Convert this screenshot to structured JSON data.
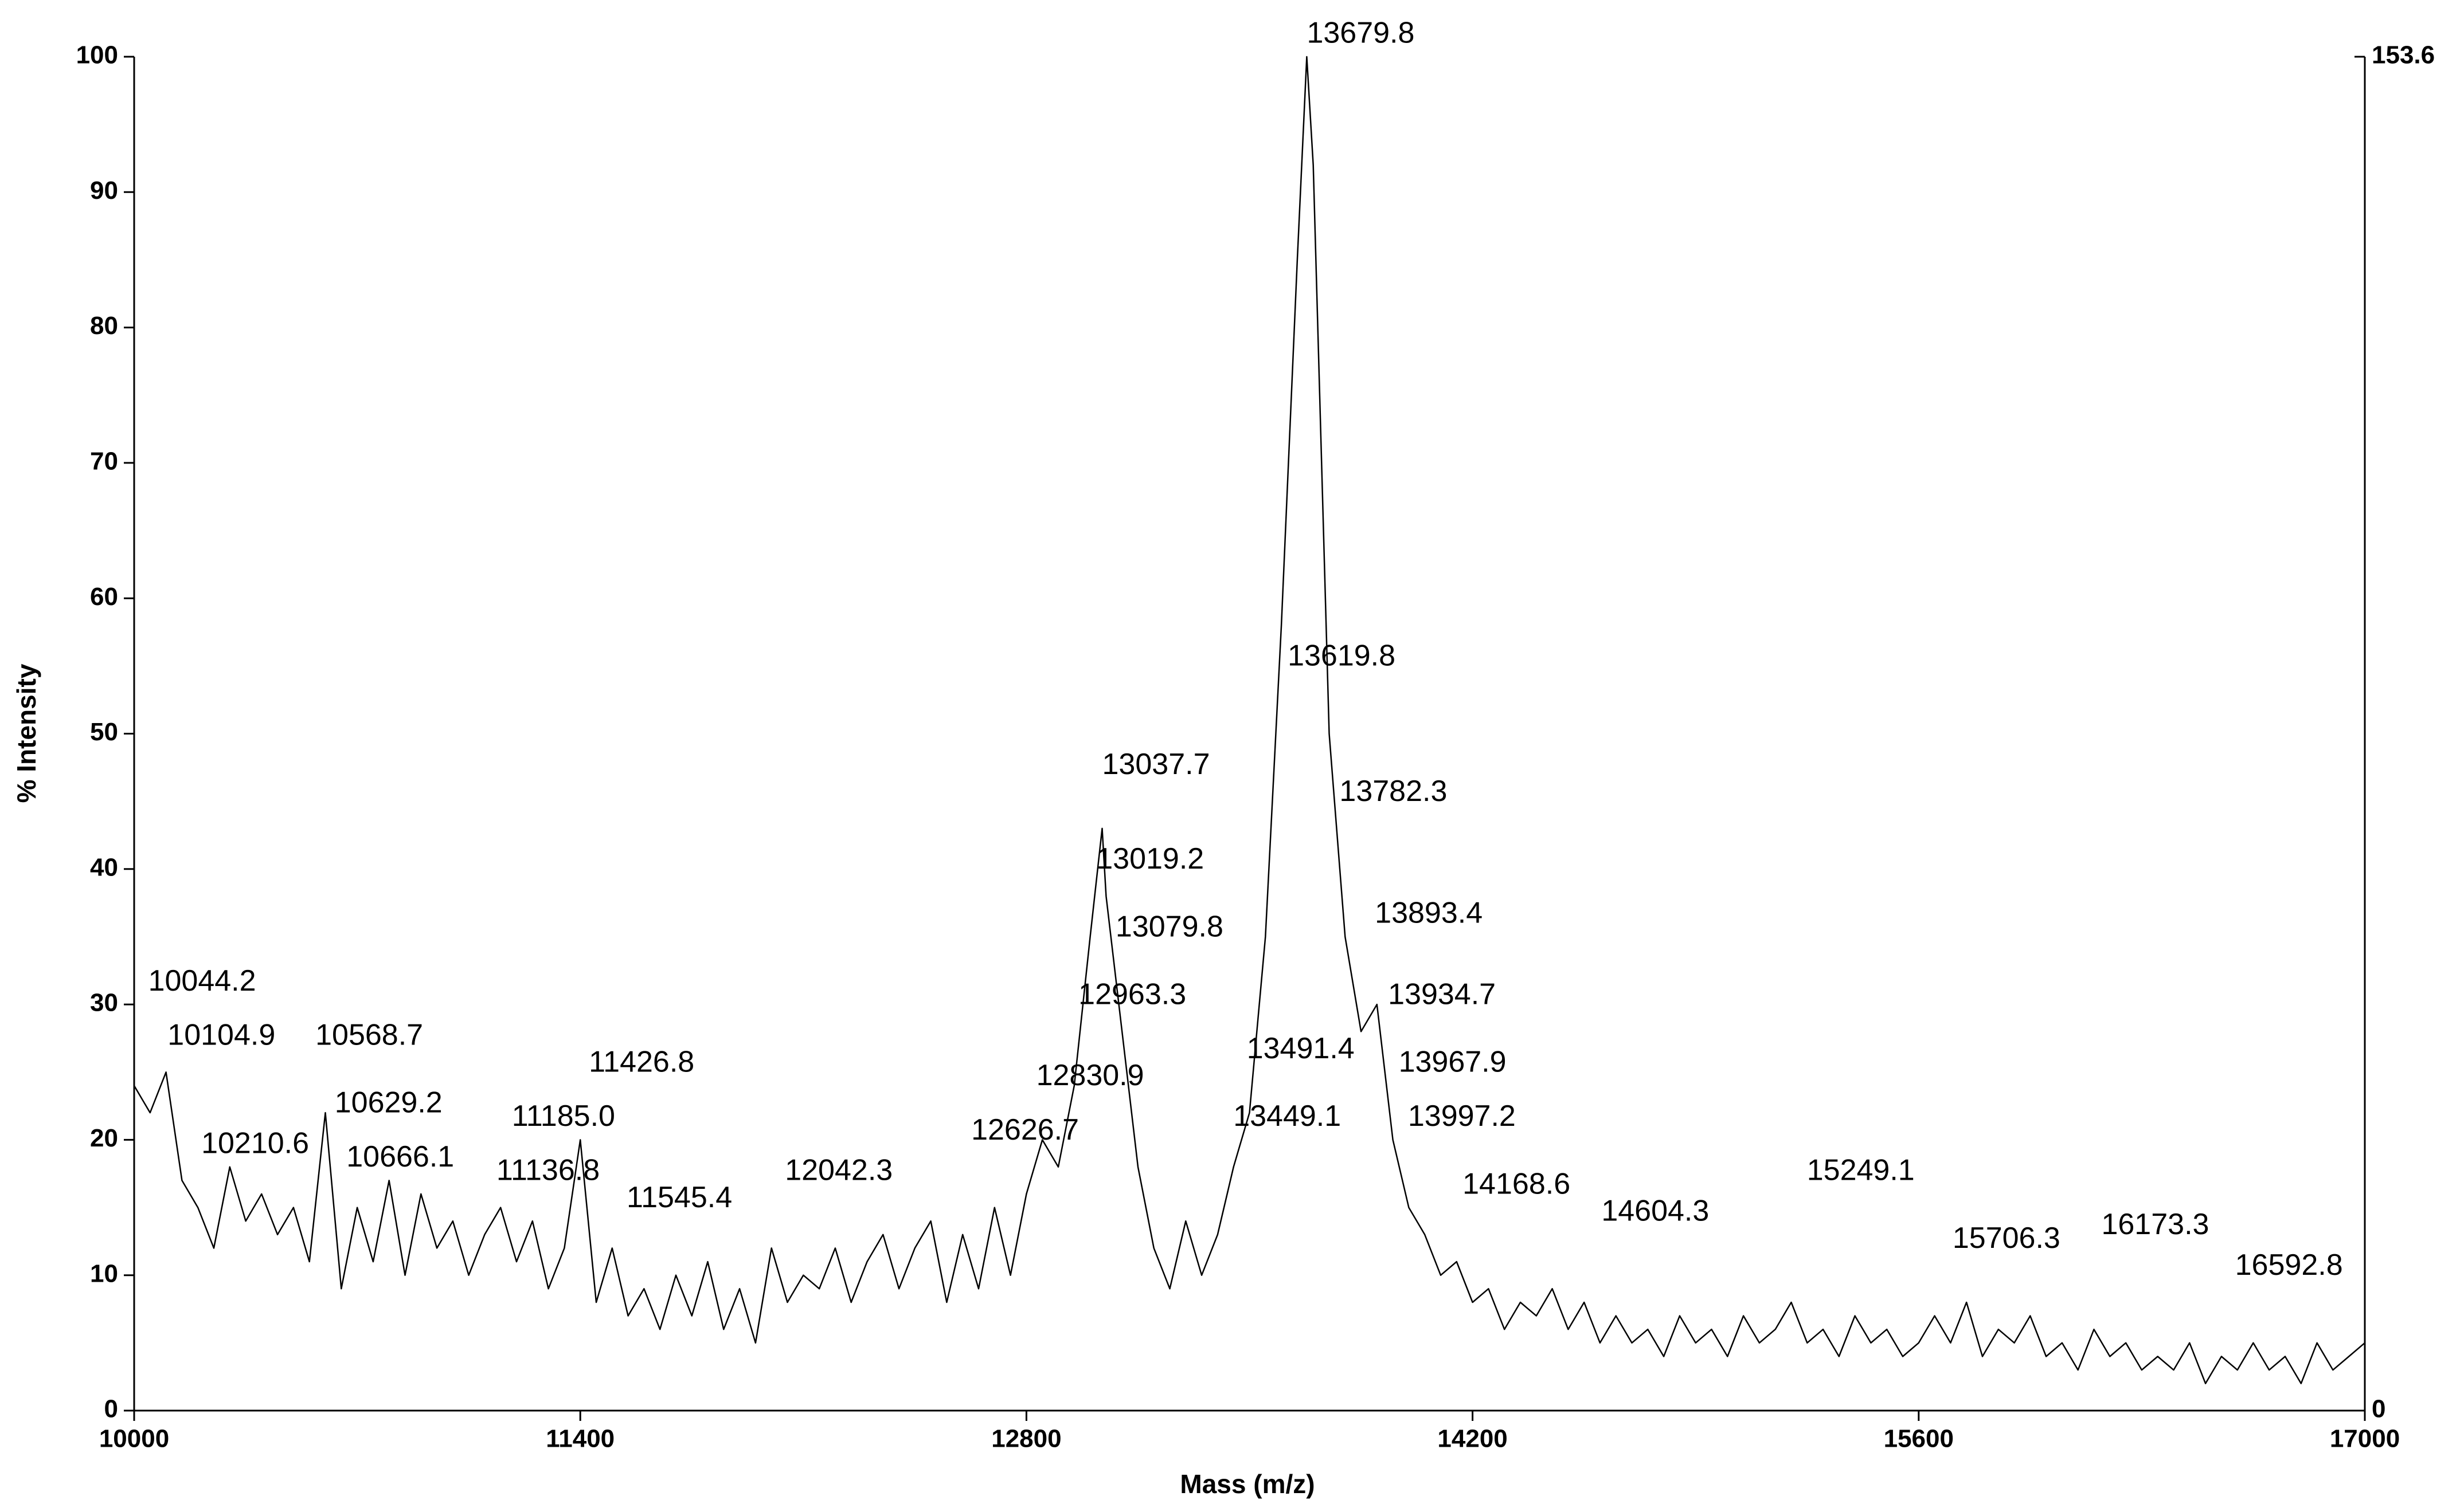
{
  "chart_data": {
    "type": "line",
    "xlabel": "Mass (m/z)",
    "ylabel": "% Intensity",
    "color": "#000000",
    "xlim": [
      10000,
      17000
    ],
    "xticks": [
      10000,
      11400,
      12800,
      14200,
      15600,
      17000
    ],
    "ylim": [
      0,
      100
    ],
    "yticks": [
      0,
      10,
      20,
      30,
      40,
      50,
      60,
      70,
      80,
      90,
      100
    ],
    "y2lim": [
      0,
      153.6
    ],
    "y2ticks": [
      0,
      153.6
    ],
    "x": [
      10000,
      10050,
      10100,
      10150,
      10200,
      10250,
      10300,
      10350,
      10400,
      10450,
      10500,
      10550,
      10600,
      10650,
      10700,
      10750,
      10800,
      10850,
      10900,
      10950,
      11000,
      11050,
      11100,
      11150,
      11200,
      11250,
      11300,
      11350,
      11400,
      11450,
      11500,
      11550,
      11600,
      11650,
      11700,
      11750,
      11800,
      11850,
      11900,
      11950,
      12000,
      12050,
      12100,
      12150,
      12200,
      12250,
      12300,
      12350,
      12400,
      12450,
      12500,
      12550,
      12600,
      12650,
      12700,
      12750,
      12800,
      12850,
      12900,
      12950,
      13000,
      13037.7,
      13050,
      13100,
      13150,
      13200,
      13250,
      13300,
      13350,
      13400,
      13450,
      13500,
      13550,
      13600,
      13650,
      13679.8,
      13700,
      13750,
      13800,
      13850,
      13900,
      13950,
      14000,
      14050,
      14100,
      14150,
      14200,
      14250,
      14300,
      14350,
      14400,
      14450,
      14500,
      14550,
      14600,
      14650,
      14700,
      14750,
      14800,
      14850,
      14900,
      14950,
      15000,
      15050,
      15100,
      15150,
      15200,
      15250,
      15300,
      15350,
      15400,
      15450,
      15500,
      15550,
      15600,
      15650,
      15700,
      15750,
      15800,
      15850,
      15900,
      15950,
      16000,
      16050,
      16100,
      16150,
      16200,
      16250,
      16300,
      16350,
      16400,
      16450,
      16500,
      16550,
      16600,
      16650,
      16700,
      16750,
      16800,
      16850,
      16900,
      16950,
      17000
    ],
    "values": [
      24,
      22,
      25,
      17,
      15,
      12,
      18,
      14,
      16,
      13,
      15,
      11,
      22,
      9,
      15,
      11,
      17,
      10,
      16,
      12,
      14,
      10,
      13,
      15,
      11,
      14,
      9,
      12,
      20,
      8,
      12,
      7,
      9,
      6,
      10,
      7,
      11,
      6,
      9,
      5,
      12,
      8,
      10,
      9,
      12,
      8,
      11,
      13,
      9,
      12,
      14,
      8,
      13,
      9,
      15,
      10,
      16,
      20,
      18,
      24,
      35,
      43,
      38,
      28,
      18,
      12,
      9,
      14,
      10,
      13,
      18,
      22,
      35,
      58,
      85,
      100,
      92,
      50,
      35,
      28,
      30,
      20,
      15,
      13,
      10,
      11,
      8,
      9,
      6,
      8,
      7,
      9,
      6,
      8,
      5,
      7,
      5,
      6,
      4,
      7,
      5,
      6,
      4,
      7,
      5,
      6,
      8,
      5,
      6,
      4,
      7,
      5,
      6,
      4,
      5,
      7,
      5,
      8,
      4,
      6,
      5,
      7,
      4,
      5,
      3,
      6,
      4,
      5,
      3,
      4,
      3,
      5,
      2,
      4,
      3,
      5,
      3,
      4,
      2,
      5,
      3,
      4,
      5
    ],
    "annotations": [
      {
        "label": "13679.8",
        "x": 13679.8,
        "y": 100
      },
      {
        "label": "13619.8",
        "x": 13619.8,
        "y": 54
      },
      {
        "label": "13782.3",
        "x": 13782.3,
        "y": 44
      },
      {
        "label": "13037.7",
        "x": 13037.7,
        "y": 46
      },
      {
        "label": "13019.2",
        "x": 13019.2,
        "y": 39
      },
      {
        "label": "13079.8",
        "x": 13079.8,
        "y": 34
      },
      {
        "label": "12963.3",
        "x": 12963.3,
        "y": 29
      },
      {
        "label": "12830.9",
        "x": 12830.9,
        "y": 23
      },
      {
        "label": "12626.7",
        "x": 12626.7,
        "y": 19
      },
      {
        "label": "13491.4",
        "x": 13491.4,
        "y": 25
      },
      {
        "label": "13449.1",
        "x": 13449.1,
        "y": 20
      },
      {
        "label": "13893.4",
        "x": 13893.4,
        "y": 35
      },
      {
        "label": "13934.7",
        "x": 13934.7,
        "y": 29
      },
      {
        "label": "13967.9",
        "x": 13967.9,
        "y": 24
      },
      {
        "label": "13997.2",
        "x": 13997.2,
        "y": 20
      },
      {
        "label": "14168.6",
        "x": 14168.6,
        "y": 15
      },
      {
        "label": "14604.3",
        "x": 14604.3,
        "y": 13
      },
      {
        "label": "15249.1",
        "x": 15249.1,
        "y": 16
      },
      {
        "label": "15706.3",
        "x": 15706.3,
        "y": 11
      },
      {
        "label": "16173.3",
        "x": 16173.3,
        "y": 12
      },
      {
        "label": "16592.8",
        "x": 16592.8,
        "y": 9
      },
      {
        "label": "10044.2",
        "x": 10044.2,
        "y": 30
      },
      {
        "label": "10104.9",
        "x": 10104.9,
        "y": 26
      },
      {
        "label": "10568.7",
        "x": 10568.7,
        "y": 26
      },
      {
        "label": "10629.2",
        "x": 10629.2,
        "y": 21
      },
      {
        "label": "10210.6",
        "x": 10210.6,
        "y": 18
      },
      {
        "label": "10666.1",
        "x": 10666.1,
        "y": 17
      },
      {
        "label": "11426.8",
        "x": 11426.8,
        "y": 24
      },
      {
        "label": "11185.0",
        "x": 11185.0,
        "y": 20
      },
      {
        "label": "11136.8",
        "x": 11136.8,
        "y": 16
      },
      {
        "label": "11545.4",
        "x": 11545.4,
        "y": 14
      },
      {
        "label": "12042.3",
        "x": 12042.3,
        "y": 16
      }
    ]
  }
}
